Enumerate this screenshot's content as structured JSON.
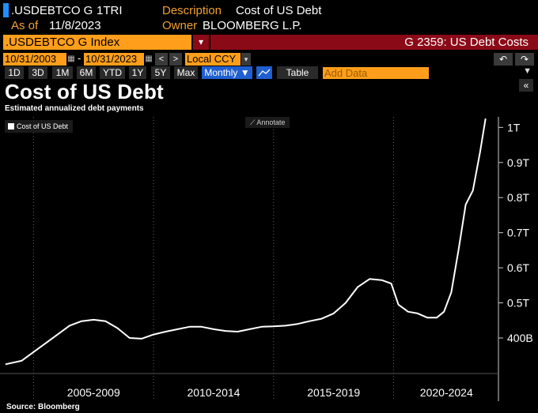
{
  "header": {
    "ticker": ".USDEBTCO G",
    "tri": "1TRI",
    "description_label": "Description",
    "description_value": "Cost of US Debt",
    "asof_label": "As of",
    "asof_value": "11/8/2023",
    "owner_label": "Owner",
    "owner_value": "BLOOMBERG L.P.",
    "ticker_input": ".USDEBTCO G Index",
    "function_title": "G 2359: US Debt Costs"
  },
  "controls": {
    "start_date": "10/31/2003",
    "end_date": "10/31/2023",
    "dash": "-",
    "prev_label": "<",
    "next_label": ">",
    "currency": "Local CCY",
    "ranges": [
      "1D",
      "3D",
      "1M",
      "6M",
      "YTD",
      "1Y",
      "5Y",
      "Max"
    ],
    "frequency": "Monthly ▼",
    "table_label": "Table",
    "add_data_placeholder": "Add Data",
    "undo_label": "↶",
    "redo_label": "↷",
    "collapse_label": "«",
    "menu_label": "▼"
  },
  "chart": {
    "title": "Cost of US Debt",
    "subtitle": "Estimated annualized debt payments",
    "legend_label": "Cost of US Debt",
    "annotate_label": "Annotate",
    "source": "Source: Bloomberg"
  },
  "chart_data": {
    "type": "line",
    "title": "Cost of US Debt",
    "subtitle": "Estimated annualized debt payments",
    "x_tick_labels": [
      "2005-2009",
      "2010-2014",
      "2015-2019",
      "2020-2024"
    ],
    "y_tick_labels": [
      "400B",
      "0.5T",
      "0.6T",
      "0.7T",
      "0.8T",
      "0.9T",
      "1T"
    ],
    "y_ticks": [
      400,
      500,
      600,
      700,
      800,
      900,
      1000
    ],
    "ylim": [
      310,
      1030
    ],
    "xlim": [
      2003.8,
      2024.3
    ],
    "legend_placement": "top-left",
    "grid": "vertical dotted",
    "series": [
      {
        "name": "Cost of US Debt",
        "color": "#ffffff",
        "x": [
          2003.83,
          2004.5,
          2005.0,
          2005.5,
          2006.0,
          2006.5,
          2007.0,
          2007.5,
          2008.0,
          2008.5,
          2009.0,
          2009.5,
          2010.0,
          2010.5,
          2011.0,
          2011.5,
          2012.0,
          2012.5,
          2013.0,
          2013.5,
          2014.0,
          2014.5,
          2015.0,
          2015.5,
          2016.0,
          2016.5,
          2017.0,
          2017.5,
          2018.0,
          2018.5,
          2019.0,
          2019.5,
          2019.9,
          2020.2,
          2020.6,
          2021.0,
          2021.4,
          2021.8,
          2022.1,
          2022.4,
          2022.7,
          2023.0,
          2023.3,
          2023.6,
          2023.83
        ],
        "y": [
          325,
          335,
          360,
          385,
          410,
          435,
          448,
          452,
          448,
          428,
          400,
          398,
          410,
          418,
          425,
          432,
          432,
          425,
          420,
          418,
          425,
          432,
          433,
          435,
          440,
          448,
          455,
          470,
          500,
          545,
          568,
          565,
          555,
          495,
          475,
          470,
          458,
          458,
          475,
          530,
          650,
          780,
          820,
          930,
          1025
        ]
      }
    ]
  }
}
